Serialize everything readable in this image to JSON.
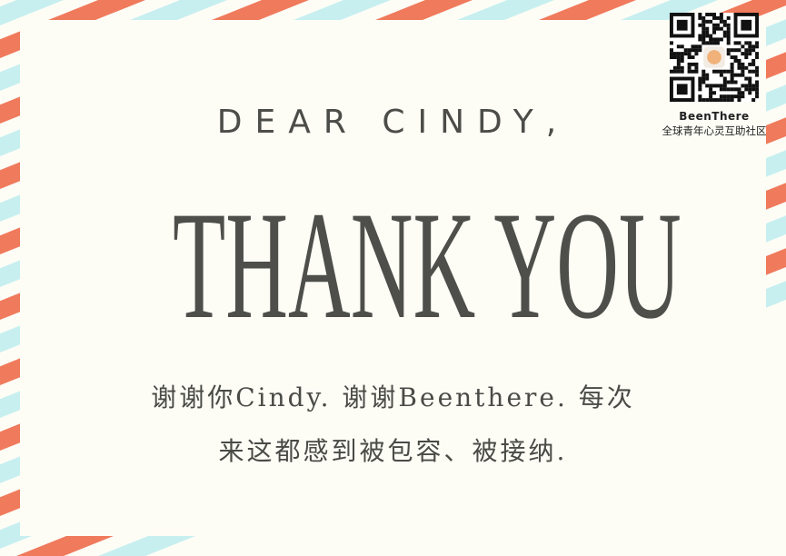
{
  "card": {
    "greeting": "DEAR CINDY,",
    "headline": "THANK YOU",
    "message_lines": [
      "谢谢你Cindy. 谢谢Beenthere. 每次",
      "来这都感到被包容、被接纳."
    ]
  },
  "qr_badge": {
    "brand": "BeenThere",
    "tagline": "全球青年心灵互助社区"
  },
  "colors": {
    "background": "#fdfdf6",
    "stripe_red": "#f07a5c",
    "stripe_blue": "#c8eff0",
    "text": "#4c4c48"
  }
}
